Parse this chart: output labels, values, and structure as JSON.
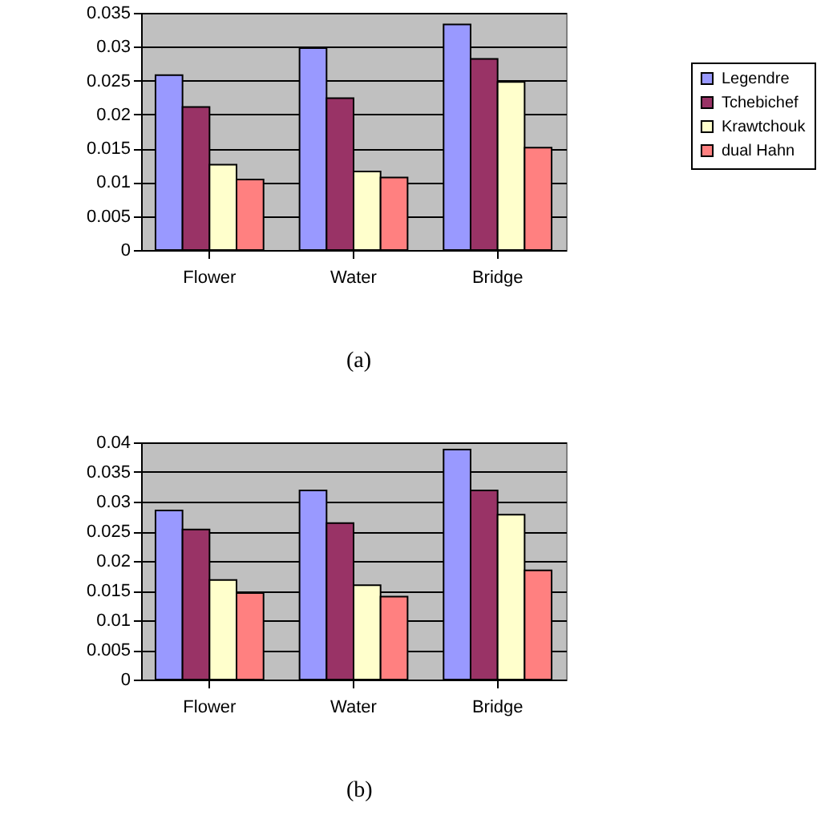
{
  "chart_data": [
    {
      "type": "bar",
      "categories": [
        "Flower",
        "Water",
        "Bridge"
      ],
      "series": [
        {
          "name": "Legendre",
          "color": "#9999ff",
          "values": [
            0.0258,
            0.0298,
            0.0333
          ]
        },
        {
          "name": "Tchebichef",
          "color": "#993366",
          "values": [
            0.0211,
            0.0224,
            0.0282
          ]
        },
        {
          "name": "Krawtchouk",
          "color": "#ffffcc",
          "values": [
            0.0126,
            0.0116,
            0.0248
          ]
        },
        {
          "name": "dual Hahn",
          "color": "#ff8080",
          "values": [
            0.0104,
            0.0107,
            0.0151
          ]
        }
      ],
      "ylim": [
        0,
        0.035
      ],
      "yticks": [
        0,
        0.005,
        0.01,
        0.015,
        0.02,
        0.025,
        0.03,
        0.035
      ],
      "grid": "y",
      "legend": "right",
      "annotations": [
        "(a)"
      ]
    },
    {
      "type": "bar",
      "categories": [
        "Flower",
        "Water",
        "Bridge"
      ],
      "series": [
        {
          "name": "Legendre",
          "color": "#9999ff",
          "values": [
            0.0285,
            0.0319,
            0.0388
          ]
        },
        {
          "name": "Tchebichef",
          "color": "#993366",
          "values": [
            0.0253,
            0.0264,
            0.0319
          ]
        },
        {
          "name": "Krawtchouk",
          "color": "#ffffcc",
          "values": [
            0.0168,
            0.0159,
            0.0278
          ]
        },
        {
          "name": "dual Hahn",
          "color": "#ff8080",
          "values": [
            0.0146,
            0.014,
            0.0184
          ]
        }
      ],
      "ylim": [
        0,
        0.04
      ],
      "yticks": [
        0,
        0.005,
        0.01,
        0.015,
        0.02,
        0.025,
        0.03,
        0.035,
        0.04
      ],
      "grid": "y",
      "legend": "right",
      "annotations": [
        "(b)"
      ]
    }
  ]
}
